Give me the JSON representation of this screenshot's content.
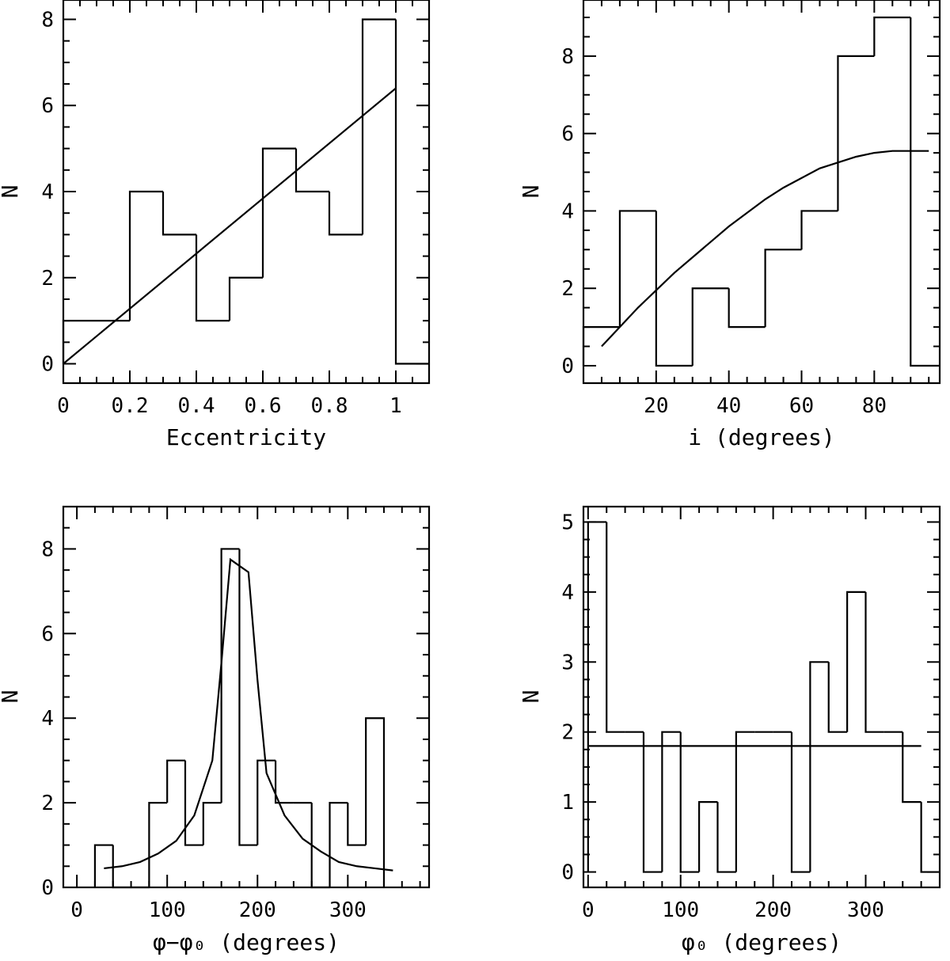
{
  "chart_data": [
    {
      "type": "histogram",
      "xlabel": "Eccentricity",
      "ylabel": "N",
      "xlim": [
        0,
        1.1
      ],
      "ylim": [
        -0.45,
        8.45
      ],
      "xticks": [
        0,
        0.2,
        0.4,
        0.6,
        0.8,
        1
      ],
      "xtick_labels": [
        "0",
        "0.2",
        "0.4",
        "0.6",
        "0.8",
        "1"
      ],
      "xminor": 0.05,
      "yticks": [
        0,
        2,
        4,
        6,
        8
      ],
      "ytick_labels": [
        "0",
        "2",
        "4",
        "6",
        "8"
      ],
      "yminor": 0.5,
      "bin_edges": [
        0,
        0.1,
        0.2,
        0.3,
        0.4,
        0.5,
        0.6,
        0.7,
        0.8,
        0.9,
        1.0,
        1.1
      ],
      "counts": [
        1,
        1,
        4,
        3,
        1,
        2,
        5,
        4,
        3,
        8,
        0
      ],
      "model_curve": {
        "x": [
          0,
          1.0
        ],
        "y": [
          0,
          6.4
        ]
      }
    },
    {
      "type": "histogram",
      "xlabel": "i (degrees)",
      "ylabel": "N",
      "xlim": [
        0,
        98
      ],
      "ylim": [
        -0.45,
        9.45
      ],
      "xticks": [
        20,
        40,
        60,
        80
      ],
      "xtick_labels": [
        "20",
        "40",
        "60",
        "80"
      ],
      "xminor": 5,
      "yticks": [
        0,
        2,
        4,
        6,
        8
      ],
      "ytick_labels": [
        "0",
        "2",
        "4",
        "6",
        "8"
      ],
      "yminor": 0.5,
      "bin_edges": [
        0,
        10,
        20,
        30,
        40,
        50,
        60,
        70,
        80,
        90,
        98
      ],
      "counts": [
        1,
        4,
        0,
        2,
        1,
        3,
        4,
        8,
        9,
        0
      ],
      "model_curve": {
        "x": [
          5,
          10,
          15,
          20,
          25,
          30,
          35,
          40,
          45,
          50,
          55,
          60,
          65,
          70,
          75,
          80,
          85,
          90,
          95
        ],
        "y": [
          0.5,
          1.0,
          1.5,
          1.95,
          2.4,
          2.8,
          3.2,
          3.6,
          3.95,
          4.3,
          4.6,
          4.85,
          5.1,
          5.25,
          5.4,
          5.5,
          5.55,
          5.55,
          5.55
        ]
      }
    },
    {
      "type": "histogram",
      "xlabel": "φ−φ₀ (degrees)",
      "ylabel": "N",
      "xlim": [
        -15,
        390
      ],
      "ylim": [
        0,
        9
      ],
      "xticks": [
        0,
        100,
        200,
        300
      ],
      "xtick_labels": [
        "0",
        "100",
        "200",
        "300"
      ],
      "xminor": 20,
      "yticks": [
        0,
        2,
        4,
        6,
        8
      ],
      "ytick_labels": [
        "0",
        "2",
        "4",
        "6",
        "8"
      ],
      "yminor": 0.5,
      "bin_edges": [
        20,
        40,
        60,
        80,
        100,
        120,
        140,
        160,
        180,
        200,
        220,
        240,
        260,
        280,
        300,
        320,
        340
      ],
      "counts": [
        1,
        0,
        0,
        2,
        3,
        1,
        2,
        8,
        1,
        3,
        2,
        2,
        0,
        2,
        1,
        4
      ],
      "model_curve": {
        "x": [
          30,
          50,
          70,
          90,
          110,
          130,
          150,
          160,
          170,
          180,
          190,
          200,
          210,
          230,
          250,
          270,
          290,
          310,
          330,
          350
        ],
        "y": [
          0.45,
          0.5,
          0.6,
          0.8,
          1.1,
          1.7,
          3.0,
          5.3,
          7.75,
          7.6,
          7.45,
          4.9,
          2.7,
          1.7,
          1.15,
          0.85,
          0.6,
          0.5,
          0.45,
          0.4
        ]
      }
    },
    {
      "type": "histogram",
      "xlabel": "φ₀ (degrees)",
      "ylabel": "N",
      "xlim": [
        -5,
        380
      ],
      "ylim": [
        -0.22,
        5.22
      ],
      "xticks": [
        0,
        100,
        200,
        300
      ],
      "xtick_labels": [
        "0",
        "100",
        "200",
        "300"
      ],
      "xminor": 20,
      "yticks": [
        0,
        1,
        2,
        3,
        4,
        5
      ],
      "ytick_labels": [
        "0",
        "1",
        "2",
        "3",
        "4",
        "5"
      ],
      "yminor": 0.25,
      "bin_edges": [
        0,
        20,
        40,
        60,
        80,
        100,
        120,
        140,
        160,
        180,
        200,
        220,
        240,
        260,
        280,
        300,
        320,
        340,
        360,
        380
      ],
      "counts": [
        5,
        2,
        2,
        0,
        2,
        0,
        1,
        0,
        2,
        2,
        2,
        0,
        3,
        2,
        4,
        2,
        2,
        1,
        0
      ],
      "model_curve": {
        "x": [
          0,
          360
        ],
        "y": [
          1.8,
          1.8
        ]
      }
    }
  ]
}
